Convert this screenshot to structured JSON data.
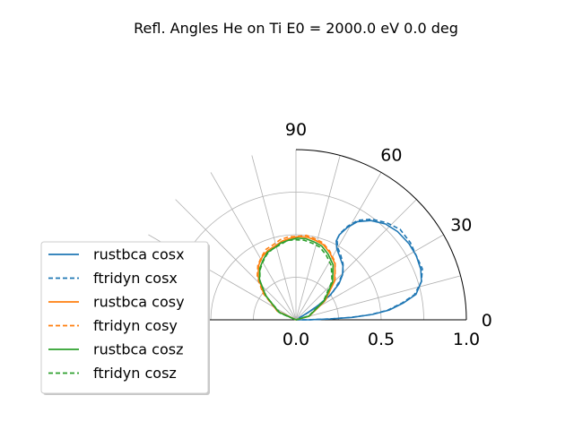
{
  "chart_data": {
    "type": "polar",
    "title": "Refl. Angles He on Ti E0 = 2000.0 eV 0.0 deg",
    "angle_range_deg": [
      0,
      90
    ],
    "radius_range": [
      0.0,
      1.0
    ],
    "angle_ticks": [
      0,
      30,
      60,
      90
    ],
    "radial_tick_labels": [
      "0.0",
      "0.5",
      "1.0"
    ],
    "radial_ticks": [
      0.0,
      0.5,
      1.0
    ],
    "extra_radial_grid": [
      0.25,
      0.75
    ],
    "angle_grid_deg": [
      0,
      15,
      30,
      45,
      60,
      75,
      90,
      105,
      120,
      135,
      150
    ],
    "grid": true,
    "legend_position": "lower-left",
    "series": [
      {
        "name": "rustbca cosx",
        "color": "#1f77b4",
        "style": "solid",
        "points": [
          [
            0.02,
            30
          ],
          [
            0.08,
            31
          ],
          [
            0.16,
            33
          ],
          [
            0.25,
            36
          ],
          [
            0.33,
            40
          ],
          [
            0.38,
            44
          ],
          [
            0.42,
            49
          ],
          [
            0.45,
            55
          ],
          [
            0.48,
            60
          ],
          [
            0.52,
            63
          ],
          [
            0.56,
            63
          ],
          [
            0.62,
            61
          ],
          [
            0.68,
            58
          ],
          [
            0.73,
            53
          ],
          [
            0.77,
            47
          ],
          [
            0.79,
            41
          ],
          [
            0.8,
            34
          ],
          [
            0.8,
            28
          ],
          [
            0.79,
            22
          ],
          [
            0.77,
            17
          ],
          [
            0.72,
            12
          ],
          [
            0.64,
            9
          ],
          [
            0.55,
            6
          ],
          [
            0.45,
            4
          ],
          [
            0.33,
            2.5
          ],
          [
            0.2,
            1.5
          ],
          [
            0.08,
            0.5
          ],
          [
            0.0,
            0
          ]
        ]
      },
      {
        "name": "ftridyn cosx",
        "color": "#1f77b4",
        "style": "dashed",
        "points": [
          [
            0.02,
            30
          ],
          [
            0.08,
            31
          ],
          [
            0.16,
            33
          ],
          [
            0.26,
            36
          ],
          [
            0.33,
            41
          ],
          [
            0.39,
            45
          ],
          [
            0.43,
            50
          ],
          [
            0.46,
            55
          ],
          [
            0.49,
            60
          ],
          [
            0.53,
            63
          ],
          [
            0.57,
            63
          ],
          [
            0.63,
            61
          ],
          [
            0.69,
            58
          ],
          [
            0.74,
            53
          ],
          [
            0.78,
            47
          ],
          [
            0.81,
            41
          ],
          [
            0.81,
            34
          ],
          [
            0.8,
            28
          ],
          [
            0.8,
            22
          ],
          [
            0.77,
            17
          ],
          [
            0.71,
            12
          ],
          [
            0.63,
            9
          ],
          [
            0.54,
            6
          ],
          [
            0.44,
            4
          ],
          [
            0.32,
            2.5
          ],
          [
            0.2,
            1.5
          ],
          [
            0.08,
            0.5
          ],
          [
            0.0,
            0
          ]
        ]
      },
      {
        "name": "rustbca cosy",
        "color": "#ff7f0e",
        "style": "solid",
        "points": [
          [
            0.0,
            0
          ],
          [
            0.08,
            15
          ],
          [
            0.2,
            33
          ],
          [
            0.32,
            45
          ],
          [
            0.4,
            55
          ],
          [
            0.44,
            63
          ],
          [
            0.47,
            70
          ],
          [
            0.48,
            76
          ],
          [
            0.49,
            82
          ],
          [
            0.49,
            88
          ],
          [
            0.48,
            94
          ],
          [
            0.47,
            100
          ],
          [
            0.45,
            106
          ],
          [
            0.44,
            112
          ],
          [
            0.42,
            118
          ],
          [
            0.39,
            124
          ],
          [
            0.34,
            131
          ],
          [
            0.25,
            140
          ],
          [
            0.12,
            155
          ],
          [
            0.0,
            180
          ]
        ]
      },
      {
        "name": "ftridyn cosy",
        "color": "#ff7f0e",
        "style": "dashed",
        "points": [
          [
            0.0,
            0
          ],
          [
            0.08,
            16
          ],
          [
            0.21,
            34
          ],
          [
            0.33,
            46
          ],
          [
            0.41,
            56
          ],
          [
            0.45,
            64
          ],
          [
            0.48,
            71
          ],
          [
            0.49,
            77
          ],
          [
            0.5,
            83
          ],
          [
            0.49,
            89
          ],
          [
            0.49,
            95
          ],
          [
            0.48,
            101
          ],
          [
            0.46,
            107
          ],
          [
            0.45,
            113
          ],
          [
            0.42,
            119
          ],
          [
            0.39,
            125
          ],
          [
            0.34,
            132
          ],
          [
            0.25,
            141
          ],
          [
            0.12,
            155
          ],
          [
            0.0,
            180
          ]
        ]
      },
      {
        "name": "rustbca cosz",
        "color": "#2ca02c",
        "style": "solid",
        "points": [
          [
            0.0,
            0
          ],
          [
            0.08,
            16
          ],
          [
            0.2,
            34
          ],
          [
            0.31,
            46
          ],
          [
            0.39,
            56
          ],
          [
            0.43,
            64
          ],
          [
            0.46,
            71
          ],
          [
            0.47,
            77
          ],
          [
            0.48,
            83
          ],
          [
            0.48,
            89
          ],
          [
            0.47,
            95
          ],
          [
            0.46,
            101
          ],
          [
            0.44,
            107
          ],
          [
            0.43,
            113
          ],
          [
            0.4,
            119
          ],
          [
            0.37,
            125
          ],
          [
            0.32,
            132
          ],
          [
            0.23,
            141
          ],
          [
            0.11,
            156
          ],
          [
            0.0,
            180
          ]
        ]
      },
      {
        "name": "ftridyn cosz",
        "color": "#2ca02c",
        "style": "dashed",
        "points": [
          [
            0.0,
            0
          ],
          [
            0.08,
            17
          ],
          [
            0.2,
            35
          ],
          [
            0.31,
            47
          ],
          [
            0.38,
            57
          ],
          [
            0.42,
            65
          ],
          [
            0.45,
            72
          ],
          [
            0.46,
            78
          ],
          [
            0.47,
            84
          ],
          [
            0.47,
            90
          ],
          [
            0.47,
            96
          ],
          [
            0.45,
            102
          ],
          [
            0.44,
            108
          ],
          [
            0.42,
            114
          ],
          [
            0.39,
            120
          ],
          [
            0.36,
            126
          ],
          [
            0.31,
            133
          ],
          [
            0.22,
            142
          ],
          [
            0.1,
            157
          ],
          [
            0.0,
            180
          ]
        ]
      }
    ]
  }
}
